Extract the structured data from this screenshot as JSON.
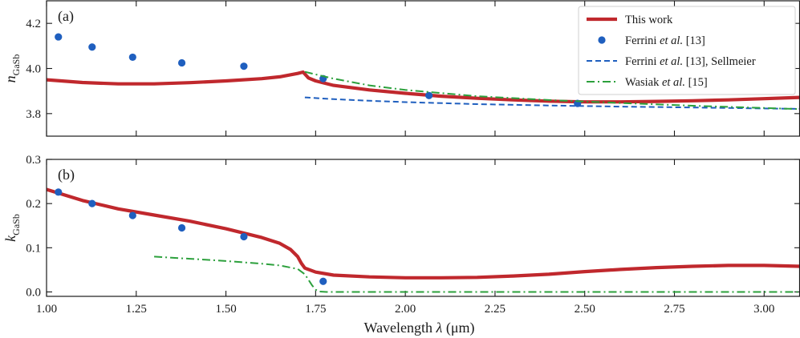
{
  "chart_data": {
    "type": "line",
    "xlabel": "Wavelength λ (μm)",
    "xlim": [
      1.0,
      3.1
    ],
    "xticks": [
      "1.00",
      "1.25",
      "1.50",
      "1.75",
      "2.00",
      "2.25",
      "2.50",
      "2.75",
      "3.00"
    ],
    "xtick_values": [
      1.0,
      1.25,
      1.5,
      1.75,
      2.0,
      2.25,
      2.5,
      2.75,
      3.0
    ],
    "panels": [
      {
        "label": "(a)",
        "ylabel_main": "n",
        "ylabel_sub": "GaSb",
        "ylim": [
          3.7,
          4.3
        ],
        "yticks": [
          "3.8",
          "4.0",
          "4.2"
        ],
        "ytick_values": [
          3.8,
          4.0,
          4.2
        ],
        "series": [
          {
            "name": "This work",
            "style": "solid",
            "color": "#c0282d",
            "x": [
              1.0,
              1.1,
              1.2,
              1.3,
              1.4,
              1.5,
              1.6,
              1.65,
              1.7,
              1.715,
              1.73,
              1.75,
              1.8,
              1.9,
              2.0,
              2.1,
              2.2,
              2.3,
              2.4,
              2.5,
              2.6,
              2.7,
              2.8,
              2.9,
              3.0,
              3.1
            ],
            "y": [
              3.95,
              3.938,
              3.932,
              3.932,
              3.937,
              3.945,
              3.955,
              3.963,
              3.978,
              3.984,
              3.958,
              3.945,
              3.925,
              3.905,
              3.89,
              3.877,
              3.868,
              3.861,
              3.855,
              3.852,
              3.852,
              3.854,
              3.857,
              3.861,
              3.866,
              3.872
            ]
          },
          {
            "name": "Ferrini et al. [13]",
            "style": "markers",
            "color": "#1f5fbf",
            "x": [
              1.033,
              1.127,
              1.24,
              1.377,
              1.55,
              1.771,
              2.066,
              2.48
            ],
            "y": [
              4.14,
              4.095,
              4.05,
              4.025,
              4.01,
              3.955,
              3.88,
              3.845
            ]
          },
          {
            "name": "Ferrini et al. [13], Sellmeier",
            "style": "dashed",
            "color": "#1f5fbf",
            "x": [
              1.72,
              1.8,
              1.9,
              2.0,
              2.2,
              2.4,
              2.6,
              2.8,
              3.0,
              3.1
            ],
            "y": [
              3.872,
              3.864,
              3.857,
              3.851,
              3.842,
              3.836,
              3.831,
              3.827,
              3.823,
              3.821
            ]
          },
          {
            "name": "Wasiak et al. [15]",
            "style": "dashdot",
            "color": "#2ca03c",
            "x": [
              1.72,
              1.8,
              1.9,
              2.0,
              2.2,
              2.4,
              2.6,
              2.8,
              3.0,
              3.1
            ],
            "y": [
              3.985,
              3.955,
              3.925,
              3.905,
              3.877,
              3.86,
              3.847,
              3.835,
              3.825,
              3.82
            ]
          }
        ]
      },
      {
        "label": "(b)",
        "ylabel_main": "k",
        "ylabel_sub": "GaSb",
        "ylim": [
          -0.01,
          0.3
        ],
        "yticks": [
          "0.0",
          "0.1",
          "0.2",
          "0.3"
        ],
        "ytick_values": [
          0.0,
          0.1,
          0.2,
          0.3
        ],
        "series": [
          {
            "name": "This work",
            "style": "solid",
            "color": "#c0282d",
            "x": [
              1.0,
              1.1,
              1.2,
              1.3,
              1.4,
              1.5,
              1.6,
              1.65,
              1.68,
              1.7,
              1.71,
              1.72,
              1.75,
              1.8,
              1.9,
              2.0,
              2.1,
              2.2,
              2.3,
              2.4,
              2.5,
              2.6,
              2.7,
              2.8,
              2.9,
              3.0,
              3.1
            ],
            "y": [
              0.232,
              0.207,
              0.188,
              0.174,
              0.16,
              0.143,
              0.123,
              0.11,
              0.096,
              0.08,
              0.065,
              0.054,
              0.045,
              0.038,
              0.034,
              0.032,
              0.032,
              0.033,
              0.036,
              0.04,
              0.046,
              0.051,
              0.055,
              0.058,
              0.06,
              0.06,
              0.058
            ]
          },
          {
            "name": "Ferrini et al. [13]",
            "style": "markers",
            "color": "#1f5fbf",
            "x": [
              1.033,
              1.127,
              1.24,
              1.377,
              1.55,
              1.771
            ],
            "y": [
              0.226,
              0.2,
              0.173,
              0.145,
              0.125,
              0.024
            ]
          },
          {
            "name": "Wasiak et al. [15]",
            "style": "dashdot",
            "color": "#2ca03c",
            "x": [
              1.3,
              1.4,
              1.5,
              1.6,
              1.65,
              1.7,
              1.72,
              1.74,
              1.75,
              1.76,
              1.78,
              1.85,
              2.0,
              2.5,
              3.0,
              3.1
            ],
            "y": [
              0.08,
              0.075,
              0.07,
              0.064,
              0.06,
              0.052,
              0.04,
              0.015,
              0.005,
              0.001,
              0.0,
              0.0,
              0.0,
              0.0,
              0.0,
              0.0
            ]
          }
        ]
      }
    ],
    "legend": {
      "placement": "top-right",
      "entries": [
        {
          "label_pre": "This work",
          "label_em": "",
          "label_post": "",
          "style": "solid",
          "color": "#c0282d"
        },
        {
          "label_pre": "Ferrini ",
          "label_em": "et al.",
          "label_post": " [13]",
          "style": "markers",
          "color": "#1f5fbf"
        },
        {
          "label_pre": "Ferrini ",
          "label_em": "et al.",
          "label_post": " [13], Sellmeier",
          "style": "dashed",
          "color": "#1f5fbf"
        },
        {
          "label_pre": "Wasiak ",
          "label_em": "et al.",
          "label_post": " [15]",
          "style": "dashdot",
          "color": "#2ca03c"
        }
      ]
    }
  }
}
